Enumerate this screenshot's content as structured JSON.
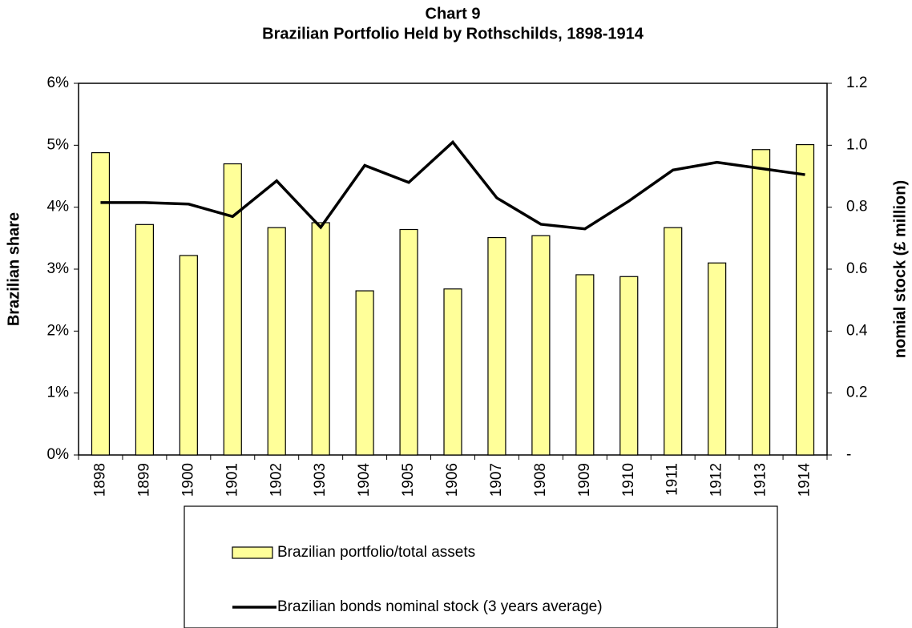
{
  "chart_data": {
    "type": "bar_line",
    "title": "Chart 9",
    "subtitle": "Brazilian Portfolio Held by Rothschilds, 1898-1914",
    "y_label": "Brazilian share",
    "y2_label": "nomial stock (£ million)",
    "categories": [
      "1898",
      "1899",
      "1900",
      "1901",
      "1902",
      "1903",
      "1904",
      "1905",
      "1906",
      "1907",
      "1908",
      "1909",
      "1910",
      "1911",
      "1912",
      "1913",
      "1914"
    ],
    "series": [
      {
        "name": "Brazilian portfolio/total assets",
        "type": "bar",
        "color": "#ffff99",
        "axis": "y",
        "values": [
          4.88,
          3.72,
          3.22,
          4.7,
          3.67,
          3.75,
          2.65,
          3.64,
          2.68,
          3.51,
          3.54,
          2.91,
          2.88,
          3.67,
          3.1,
          4.93,
          5.01
        ]
      },
      {
        "name": "Brazilian bonds nominal stock (3 years average)",
        "type": "line",
        "color": "#000000",
        "axis": "y2",
        "values": [
          0.815,
          0.815,
          0.81,
          0.77,
          0.885,
          0.735,
          0.935,
          0.88,
          1.01,
          0.83,
          0.745,
          0.73,
          0.82,
          0.92,
          0.945,
          0.925,
          0.905
        ]
      }
    ],
    "ylim": [
      0,
      6
    ],
    "yticks": [
      {
        "value": 0,
        "label": "0%"
      },
      {
        "value": 1,
        "label": "1%"
      },
      {
        "value": 2,
        "label": "2%"
      },
      {
        "value": 3,
        "label": "3%"
      },
      {
        "value": 4,
        "label": "4%"
      },
      {
        "value": 5,
        "label": "5%"
      },
      {
        "value": 6,
        "label": "6%"
      }
    ],
    "y2lim": [
      0,
      1.2
    ],
    "y2ticks": [
      {
        "value": 0,
        "label": "-"
      },
      0.2,
      0.4,
      0.6,
      0.8,
      {
        "value": 1,
        "label": "1.0"
      },
      1.2
    ]
  }
}
